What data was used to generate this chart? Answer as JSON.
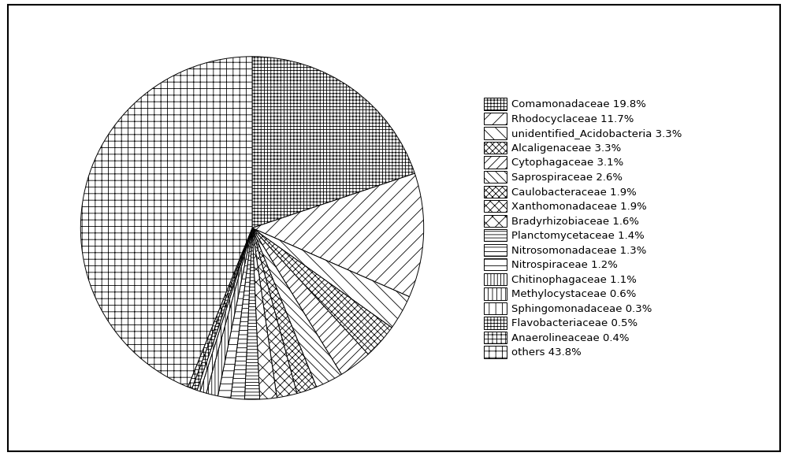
{
  "labels": [
    "Comamonadaceae",
    "Rhodocyclaceae",
    "unidentified_Acidobacteria",
    "Alcaligenaceae",
    "Cytophagaceae",
    "Saprospiraceae",
    "Caulobacteraceae",
    "Xanthomonadaceae",
    "Bradyrhizobiaceae",
    "Planctomycetaceae",
    "Nitrosomonadaceae",
    "Nitrospiraceae",
    "Chitinophagaceae",
    "Methylocystaceae",
    "Sphingomonadaceae",
    "Flavobacteriaceae",
    "Anaerolineaceae",
    "others"
  ],
  "values": [
    19.8,
    11.7,
    3.3,
    3.3,
    3.1,
    2.6,
    1.9,
    1.9,
    1.6,
    1.4,
    1.3,
    1.2,
    1.1,
    0.6,
    0.3,
    0.5,
    0.4,
    43.8
  ],
  "hatch_patterns": [
    "////",
    "////",
    "\\\\",
    "xxxx",
    "////",
    "\\\\",
    "xxxx",
    "xxx",
    "xx",
    "----",
    "---",
    "--",
    "||||",
    "|||",
    "||",
    "++++",
    "+++",
    "++"
  ],
  "legend_labels": [
    "Comamonadaceae 19.8%",
    "Rhodocyclaceae 11.7%",
    "unidentified_Acidobacteria 3.3%",
    "Alcaligenaceae 3.3%",
    "Cytophagaceae 3.1%",
    "Saprospiraceae 2.6%",
    "Caulobacteraceae 1.9%",
    "Xanthomonadaceae 1.9%",
    "Bradyrhizobiaceae 1.6%",
    "Planctomycetaceae 1.4%",
    "Nitrosomonadaceae 1.3%",
    "Nitrospiraceae 1.2%",
    "Chitinophagaceae 1.1%",
    "Methylocystaceae 0.6%",
    "Sphingomonadaceae 0.3%",
    "Flavobacteriaceae 0.5%",
    "Anaerolineaceae 0.4%",
    "others 43.8%"
  ],
  "startangle": 90,
  "figsize": [
    10.0,
    5.79
  ],
  "legend_fontsize": 9.5,
  "border_linewidth": 1.5
}
